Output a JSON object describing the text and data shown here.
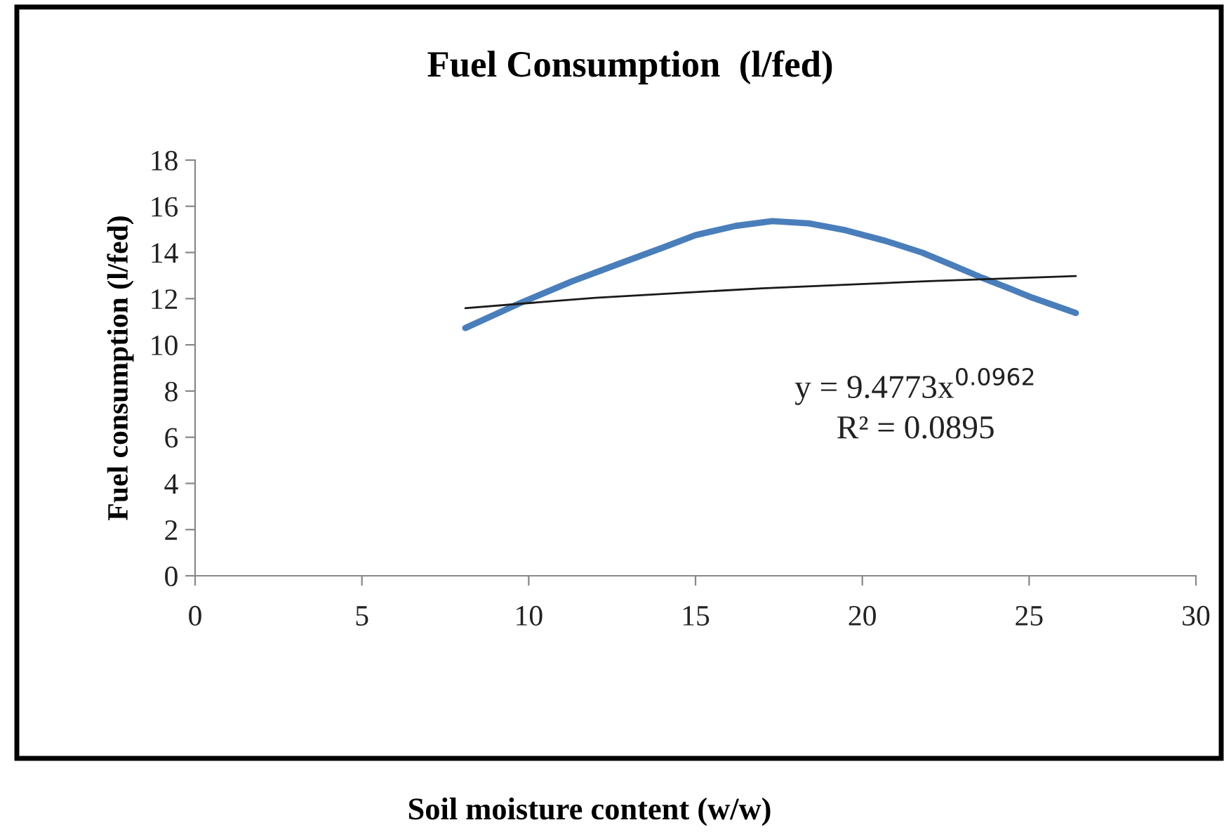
{
  "chart_data": {
    "type": "line",
    "title": "Fuel Consumption  (l/fed)",
    "ylabel": "Fuel consumption (l/fed)",
    "xlim": [
      0,
      30
    ],
    "xticks": [
      0,
      5,
      10,
      15,
      20,
      25,
      30
    ],
    "ylim": [
      0,
      18
    ],
    "yticks": [
      0,
      2,
      4,
      6,
      8,
      10,
      12,
      14,
      16,
      18
    ],
    "grid": false,
    "legend": false,
    "series": [
      {
        "color": "#4a7ebb",
        "x": [
          8.1,
          9.76,
          11.3,
          12.8,
          14.0,
          15.0,
          16.2,
          17.3,
          18.4,
          19.5,
          20.7,
          21.8,
          22.7,
          23.6,
          24.4,
          25.1,
          26.4
        ],
        "values": [
          10.73,
          11.82,
          12.75,
          13.56,
          14.2,
          14.75,
          15.15,
          15.36,
          15.26,
          14.96,
          14.5,
          13.99,
          13.45,
          12.9,
          12.45,
          12.04,
          11.38
        ]
      },
      {
        "color": "#1a1a1a",
        "x": [
          8.1,
          12,
          17,
          22,
          26.4
        ],
        "values": [
          11.59,
          12.04,
          12.45,
          12.76,
          12.98
        ]
      }
    ],
    "annotations": [
      "y = 9.4773x$^{0.0962}$",
      "R² = 0.0895",
      "Soil moisture content (w/w)"
    ]
  }
}
